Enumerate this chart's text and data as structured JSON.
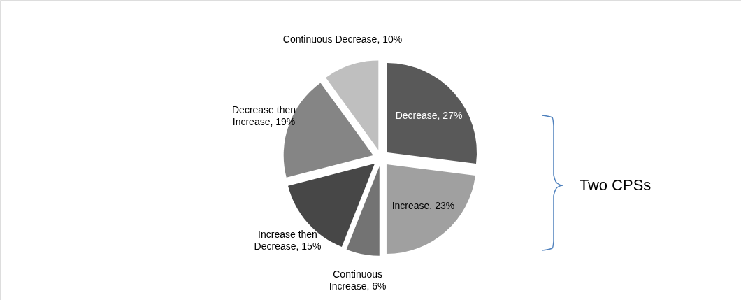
{
  "chart_data": {
    "type": "pie",
    "categories": [
      "Decrease",
      "Increase",
      "Continuous Increase",
      "Increase then Decrease",
      "Decrease then Increase",
      "Continuous Decrease"
    ],
    "values": [
      27,
      23,
      6,
      15,
      19,
      10
    ],
    "colors": [
      "#595959",
      "#a0a0a0",
      "#737373",
      "#474747",
      "#858585",
      "#bfbfbf"
    ],
    "value_labels": [
      "27%",
      "23%",
      "6%",
      "15%",
      "19%",
      "10%"
    ],
    "annotations": [
      "Two CPSs"
    ]
  }
}
